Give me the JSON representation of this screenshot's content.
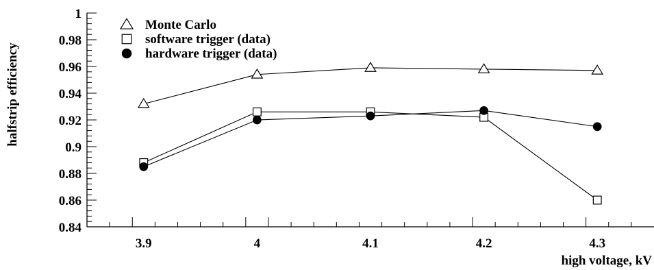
{
  "chart_data": {
    "type": "line",
    "title": "",
    "xlabel": "high voltage, kV",
    "ylabel": "halfstrip efficiency",
    "xlim": [
      3.85,
      4.35
    ],
    "ylim": [
      0.84,
      1.0
    ],
    "x": [
      3.9,
      4.0,
      4.1,
      4.2,
      4.3
    ],
    "x_ticks": [
      "3.9",
      "4",
      "4.1",
      "4.2",
      "4.3"
    ],
    "y_ticks": [
      "0.84",
      "0.86",
      "0.88",
      "0.9",
      "0.92",
      "0.94",
      "0.96",
      "0.98",
      "1"
    ],
    "grid": false,
    "legend_position": "top-left",
    "series": [
      {
        "name": "Monte Carlo",
        "marker": "open-triangle",
        "values": [
          0.932,
          0.954,
          0.959,
          0.958,
          0.957
        ]
      },
      {
        "name": "software trigger (data)",
        "marker": "open-square",
        "values": [
          0.888,
          0.926,
          0.926,
          0.922,
          0.86
        ]
      },
      {
        "name": "hardware trigger (data)",
        "marker": "filled-circle",
        "values": [
          0.885,
          0.92,
          0.923,
          0.927,
          0.915
        ]
      }
    ]
  }
}
